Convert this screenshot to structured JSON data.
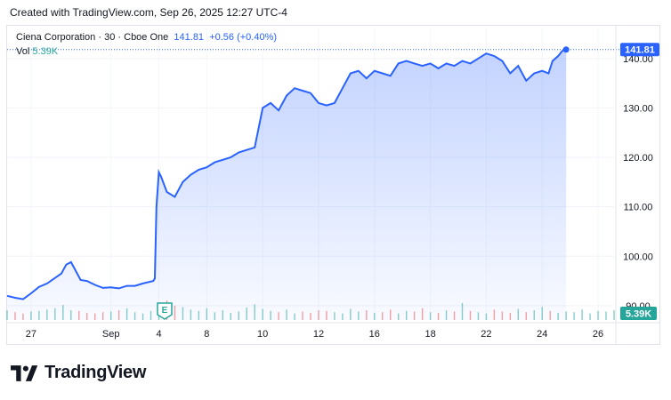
{
  "caption": "Created with TradingView.com, Sep 26, 2025 12:27 UTC-4",
  "legend": {
    "symbol": "Ciena Corporation",
    "interval": "30",
    "exchange": "Cboe One",
    "last_price": "141.81",
    "change": "+0.56 (+0.40%)",
    "vol_label": "Vol",
    "vol_value": "5.39K"
  },
  "price_label": "141.81",
  "volume_label": "5.39K",
  "earnings_marker": "E",
  "brand": "TradingView",
  "colors": {
    "line": "#2962ff",
    "fill": "#2962ff",
    "vol_up": "#26a69a",
    "vol_down": "#ef5350"
  },
  "chart_data": {
    "type": "area",
    "ylim": [
      88,
      145
    ],
    "y_ticks": [
      90,
      100,
      110,
      120,
      130,
      140
    ],
    "x_tick_labels": [
      "27",
      "Sep",
      "4",
      "8",
      "10",
      "12",
      "16",
      "18",
      "22",
      "24",
      "26"
    ],
    "x_tick_pos": [
      3,
      13,
      19,
      25,
      32,
      39,
      46,
      53,
      60,
      67,
      74
    ],
    "n_points": 77,
    "series": [
      {
        "values": [
          [
            0,
            92.0
          ],
          [
            1,
            91.6
          ],
          [
            2,
            91.3
          ],
          [
            3,
            92.5
          ],
          [
            4,
            93.8
          ],
          [
            5,
            94.5
          ],
          [
            6,
            95.6
          ],
          [
            6.8,
            96.5
          ],
          [
            7.4,
            98.3
          ],
          [
            8,
            98.8
          ],
          [
            8.6,
            97.0
          ],
          [
            9.2,
            95.2
          ],
          [
            10,
            95.0
          ],
          [
            11,
            94.2
          ],
          [
            12,
            93.6
          ],
          [
            13,
            93.7
          ],
          [
            14,
            93.5
          ],
          [
            15,
            94.0
          ],
          [
            16,
            94.0
          ],
          [
            17,
            94.5
          ],
          [
            18.3,
            95.0
          ],
          [
            18.5,
            95.5
          ],
          [
            18.7,
            110.0
          ],
          [
            19,
            117.0
          ],
          [
            19.3,
            116.0
          ],
          [
            20,
            113.0
          ],
          [
            21,
            112.0
          ],
          [
            22,
            115.0
          ],
          [
            23,
            116.5
          ],
          [
            24,
            117.5
          ],
          [
            25,
            118.0
          ],
          [
            26,
            119.0
          ],
          [
            27,
            119.5
          ],
          [
            28,
            120.0
          ],
          [
            29,
            121.0
          ],
          [
            30,
            121.5
          ],
          [
            31,
            122.0
          ],
          [
            31.5,
            126.0
          ],
          [
            32,
            130.0
          ],
          [
            33,
            131.0
          ],
          [
            34,
            129.5
          ],
          [
            35,
            132.5
          ],
          [
            36,
            134.0
          ],
          [
            37,
            133.5
          ],
          [
            38,
            133.0
          ],
          [
            39,
            131.0
          ],
          [
            40,
            130.5
          ],
          [
            41,
            131.0
          ],
          [
            42,
            134.0
          ],
          [
            43,
            137.0
          ],
          [
            44,
            137.5
          ],
          [
            45,
            136.0
          ],
          [
            46,
            137.5
          ],
          [
            47,
            137.0
          ],
          [
            48,
            136.5
          ],
          [
            49,
            139.0
          ],
          [
            50,
            139.5
          ],
          [
            51,
            139.0
          ],
          [
            52,
            138.5
          ],
          [
            53,
            139.0
          ],
          [
            54,
            138.0
          ],
          [
            55,
            139.0
          ],
          [
            56,
            138.5
          ],
          [
            57,
            139.5
          ],
          [
            58,
            139.0
          ],
          [
            59,
            140.0
          ],
          [
            60,
            141.0
          ],
          [
            61,
            140.5
          ],
          [
            62,
            139.5
          ],
          [
            63,
            137.0
          ],
          [
            64,
            138.5
          ],
          [
            65,
            135.5
          ],
          [
            66,
            137.0
          ],
          [
            67,
            137.5
          ],
          [
            67.8,
            137.0
          ],
          [
            68.3,
            139.5
          ],
          [
            69,
            140.5
          ],
          [
            69.5,
            141.5
          ],
          [
            70,
            141.81
          ]
        ]
      }
    ],
    "volume": [
      1.5,
      1.2,
      1.0,
      1.3,
      1.4,
      1.6,
      1.8,
      2.3,
      1.5,
      1.4,
      1.1,
      1.0,
      1.2,
      1.3,
      1.5,
      1.8,
      1.2,
      1.0,
      1.4,
      2.5,
      3.0,
      2.2,
      2.0,
      1.6,
      1.4,
      1.8,
      1.2,
      1.5,
      1.1,
      1.3,
      1.9,
      2.4,
      1.7,
      1.4,
      1.2,
      1.6,
      1.0,
      1.3,
      1.1,
      1.5,
      1.4,
      1.2,
      1.0,
      1.7,
      1.3,
      1.5,
      1.1,
      1.2,
      1.6,
      1.0,
      1.4,
      1.3,
      1.8,
      1.2,
      1.1,
      1.5,
      1.3,
      2.6,
      1.4,
      1.2,
      1.0,
      1.6,
      1.3,
      1.1,
      1.7,
      1.2,
      1.5,
      2.0,
      1.4,
      1.1,
      1.3,
      1.2,
      1.6,
      1.0,
      1.4,
      1.3,
      1.5
    ]
  }
}
